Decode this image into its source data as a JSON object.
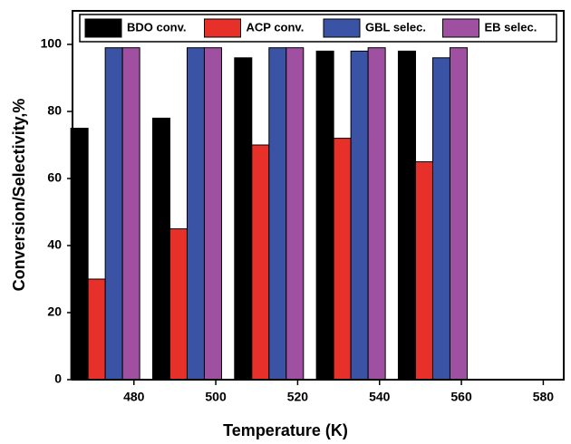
{
  "chart_data": {
    "type": "bar",
    "x": [
      473,
      493,
      513,
      533,
      553
    ],
    "xlabel": "Temperature (K)",
    "ylabel": "Conversion/Selectivity,%",
    "series": [
      {
        "name": "BDO conv.",
        "color": "#000000",
        "values": [
          75,
          78,
          96,
          98,
          98
        ]
      },
      {
        "name": "ACP conv.",
        "color": "#e8302a",
        "values": [
          30,
          45,
          70,
          72,
          65
        ]
      },
      {
        "name": "GBL selec.",
        "color": "#3a53a4",
        "values": [
          99,
          99,
          99,
          98,
          96
        ]
      },
      {
        "name": "EB selec.",
        "color": "#a050a0",
        "values": [
          99,
          99,
          99,
          99,
          99
        ]
      }
    ],
    "xlim": [
      465,
      585
    ],
    "xticks": [
      480,
      500,
      520,
      540,
      560,
      580
    ],
    "ylim": [
      0,
      110
    ],
    "yticks": [
      0,
      20,
      40,
      60,
      80,
      100
    ],
    "legend": "top"
  }
}
